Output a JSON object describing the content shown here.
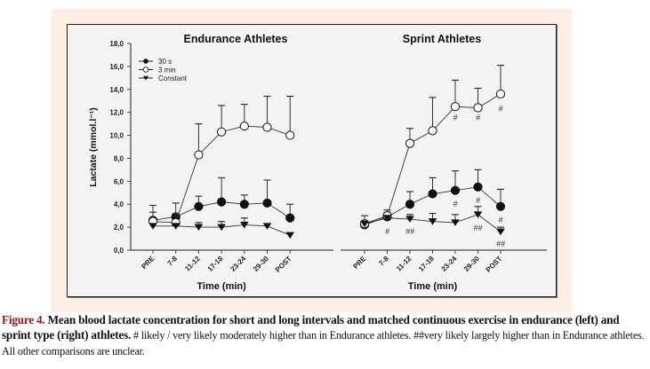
{
  "chart_data": [
    {
      "type": "line",
      "title": "Endurance Athletes",
      "xlabel": "Time (min)",
      "ylabel": "Lactate (mmol.l⁻¹)",
      "categories": [
        "PRE",
        "7-8",
        "11-12",
        "17-18",
        "23-24",
        "29-30",
        "POST"
      ],
      "ylim": [
        0,
        18
      ],
      "yticks": [
        "0,0",
        "2,0",
        "4,0",
        "6,0",
        "8,0",
        "10,0",
        "12,0",
        "14,0",
        "16,0",
        "18,0"
      ],
      "legend": {
        "placement": "top-left",
        "entries": [
          "30 s",
          "3 min",
          "Constant"
        ]
      },
      "series": [
        {
          "name": "30 s",
          "marker": "filled-circle",
          "values": [
            2.6,
            2.9,
            3.8,
            4.2,
            4.0,
            4.1,
            2.8
          ],
          "error_upper": [
            3.3,
            4.1,
            4.7,
            6.3,
            4.8,
            6.1,
            4.0
          ]
        },
        {
          "name": "3 min",
          "marker": "open-circle",
          "values": [
            2.5,
            2.4,
            8.3,
            10.3,
            10.8,
            10.7,
            10.0
          ],
          "error_upper": [
            3.9,
            3.2,
            11.0,
            12.6,
            12.7,
            13.4,
            13.4
          ]
        },
        {
          "name": "Constant",
          "marker": "filled-triangle-down",
          "values": [
            2.1,
            2.1,
            2.0,
            2.0,
            2.2,
            2.1,
            1.3
          ],
          "error_upper": [
            2.1,
            2.1,
            2.4,
            2.5,
            2.8,
            2.3,
            1.3
          ]
        }
      ],
      "annotations": []
    },
    {
      "type": "line",
      "title": "Sprint Athletes",
      "xlabel": "Time (min)",
      "categories": [
        "PRE",
        "7-8",
        "11-12",
        "17-18",
        "23-24",
        "29-30",
        "POST"
      ],
      "ylim": [
        0,
        18
      ],
      "series": [
        {
          "name": "30 s",
          "marker": "filled-circle",
          "values": [
            2.2,
            2.9,
            4.0,
            4.9,
            5.2,
            5.5,
            3.8
          ],
          "error_upper": [
            3.0,
            3.3,
            5.1,
            6.3,
            6.9,
            7.0,
            5.3
          ]
        },
        {
          "name": "3 min",
          "marker": "open-circle",
          "values": [
            2.3,
            3.0,
            9.3,
            10.4,
            12.5,
            12.4,
            13.6
          ],
          "error_upper": [
            2.3,
            3.5,
            10.6,
            13.3,
            14.8,
            14.1,
            16.1
          ]
        },
        {
          "name": "Constant",
          "marker": "filled-triangle-down",
          "values": [
            2.3,
            2.8,
            2.7,
            2.5,
            2.4,
            3.1,
            1.6
          ],
          "error_upper": [
            2.3,
            2.8,
            3.1,
            3.2,
            3.1,
            3.8,
            2.0
          ]
        }
      ],
      "annotations": [
        {
          "category": "7-8",
          "y": 1.4,
          "text": "#"
        },
        {
          "category": "11-12",
          "y": 1.4,
          "text": "##"
        },
        {
          "category": "23-24",
          "y": 11.3,
          "text": "#"
        },
        {
          "category": "29-30",
          "y": 11.3,
          "text": "#"
        },
        {
          "category": "POST",
          "y": 12.1,
          "text": "#"
        },
        {
          "category": "23-24",
          "y": 3.8,
          "text": "#"
        },
        {
          "category": "29-30",
          "y": 4.1,
          "text": "#"
        },
        {
          "category": "POST",
          "y": 2.4,
          "text": "#"
        },
        {
          "category": "29-30",
          "y": 1.7,
          "text": "##"
        },
        {
          "category": "POST",
          "y": 0.3,
          "text": "##"
        }
      ]
    }
  ],
  "caption": {
    "label": "Figure 4.",
    "bold_text": " Mean blood lactate concentration for short and long intervals and matched continuous exercise in endurance (left) and sprint type (right) athletes.",
    "normal_text": " # likely / very likely moderately higher than in Endurance athletes. ##very likely largely higher than in Endurance athletes. All other comparisons are unclear."
  }
}
